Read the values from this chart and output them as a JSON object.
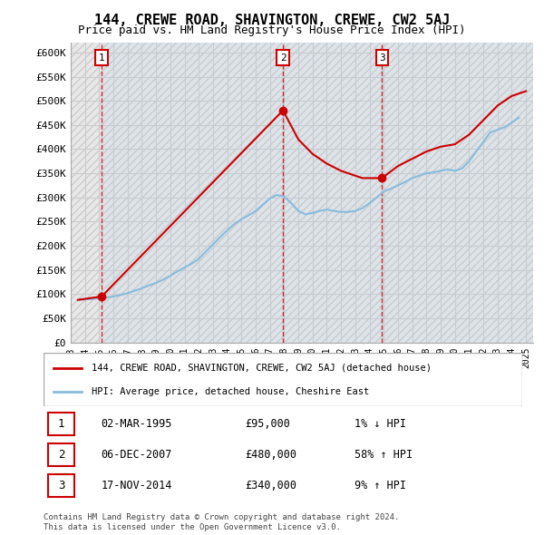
{
  "title": "144, CREWE ROAD, SHAVINGTON, CREWE, CW2 5AJ",
  "subtitle": "Price paid vs. HM Land Registry's House Price Index (HPI)",
  "ylabel_ticks": [
    "£0",
    "£50K",
    "£100K",
    "£150K",
    "£200K",
    "£250K",
    "£300K",
    "£350K",
    "£400K",
    "£450K",
    "£500K",
    "£550K",
    "£600K"
  ],
  "ytick_values": [
    0,
    50000,
    100000,
    150000,
    200000,
    250000,
    300000,
    350000,
    400000,
    450000,
    500000,
    550000,
    600000
  ],
  "xlim_start": 1993.0,
  "xlim_end": 2025.5,
  "ylim_min": 0,
  "ylim_max": 620000,
  "sale_dates": [
    1995.17,
    2007.92,
    2014.88
  ],
  "sale_prices": [
    95000,
    480000,
    340000
  ],
  "sale_labels": [
    "1",
    "2",
    "3"
  ],
  "legend_line1": "144, CREWE ROAD, SHAVINGTON, CREWE, CW2 5AJ (detached house)",
  "legend_line2": "HPI: Average price, detached house, Cheshire East",
  "table_rows": [
    [
      "1",
      "02-MAR-1995",
      "£95,000",
      "1% ↓ HPI"
    ],
    [
      "2",
      "06-DEC-2007",
      "£480,000",
      "58% ↑ HPI"
    ],
    [
      "3",
      "17-NOV-2014",
      "£340,000",
      "9% ↑ HPI"
    ]
  ],
  "footnote": "Contains HM Land Registry data © Crown copyright and database right 2024.\nThis data is licensed under the Open Government Licence v3.0.",
  "red_color": "#cc0000",
  "blue_color": "#6699cc",
  "hpi_color": "#88bbdd",
  "bg_hatch_color": "#e8e8e8",
  "grid_color": "#cccccc",
  "hpi_data_x": [
    1993.5,
    1994.0,
    1994.5,
    1995.0,
    1995.5,
    1996.0,
    1996.5,
    1997.0,
    1997.5,
    1998.0,
    1998.5,
    1999.0,
    1999.5,
    2000.0,
    2000.5,
    2001.0,
    2001.5,
    2002.0,
    2002.5,
    2003.0,
    2003.5,
    2004.0,
    2004.5,
    2005.0,
    2005.5,
    2006.0,
    2006.5,
    2007.0,
    2007.5,
    2008.0,
    2008.5,
    2009.0,
    2009.5,
    2010.0,
    2010.5,
    2011.0,
    2011.5,
    2012.0,
    2012.5,
    2013.0,
    2013.5,
    2014.0,
    2014.5,
    2015.0,
    2015.5,
    2016.0,
    2016.5,
    2017.0,
    2017.5,
    2018.0,
    2018.5,
    2019.0,
    2019.5,
    2020.0,
    2020.5,
    2021.0,
    2021.5,
    2022.0,
    2022.5,
    2023.0,
    2023.5,
    2024.0,
    2024.5
  ],
  "hpi_data_y": [
    88000,
    89000,
    90000,
    91000,
    93000,
    95000,
    98000,
    102000,
    107000,
    112000,
    118000,
    123000,
    130000,
    138000,
    147000,
    155000,
    163000,
    173000,
    188000,
    203000,
    218000,
    232000,
    245000,
    255000,
    263000,
    272000,
    285000,
    298000,
    305000,
    302000,
    288000,
    272000,
    265000,
    268000,
    272000,
    275000,
    272000,
    270000,
    270000,
    272000,
    278000,
    288000,
    300000,
    312000,
    318000,
    325000,
    332000,
    340000,
    345000,
    350000,
    352000,
    355000,
    358000,
    355000,
    360000,
    375000,
    395000,
    415000,
    435000,
    440000,
    445000,
    455000,
    465000
  ],
  "price_line_x": [
    1993.5,
    1995.17,
    1995.17,
    2007.92,
    2007.92,
    2009.0,
    2010.0,
    2011.0,
    2012.0,
    2013.0,
    2013.5,
    2014.0,
    2014.88,
    2014.88,
    2016.0,
    2017.0,
    2018.0,
    2019.0,
    2020.0,
    2021.0,
    2022.0,
    2023.0,
    2024.0,
    2025.0
  ],
  "price_line_y": [
    88000,
    95000,
    95000,
    480000,
    480000,
    420000,
    390000,
    370000,
    355000,
    345000,
    340000,
    340000,
    340000,
    340000,
    365000,
    380000,
    395000,
    405000,
    410000,
    430000,
    460000,
    490000,
    510000,
    520000
  ]
}
